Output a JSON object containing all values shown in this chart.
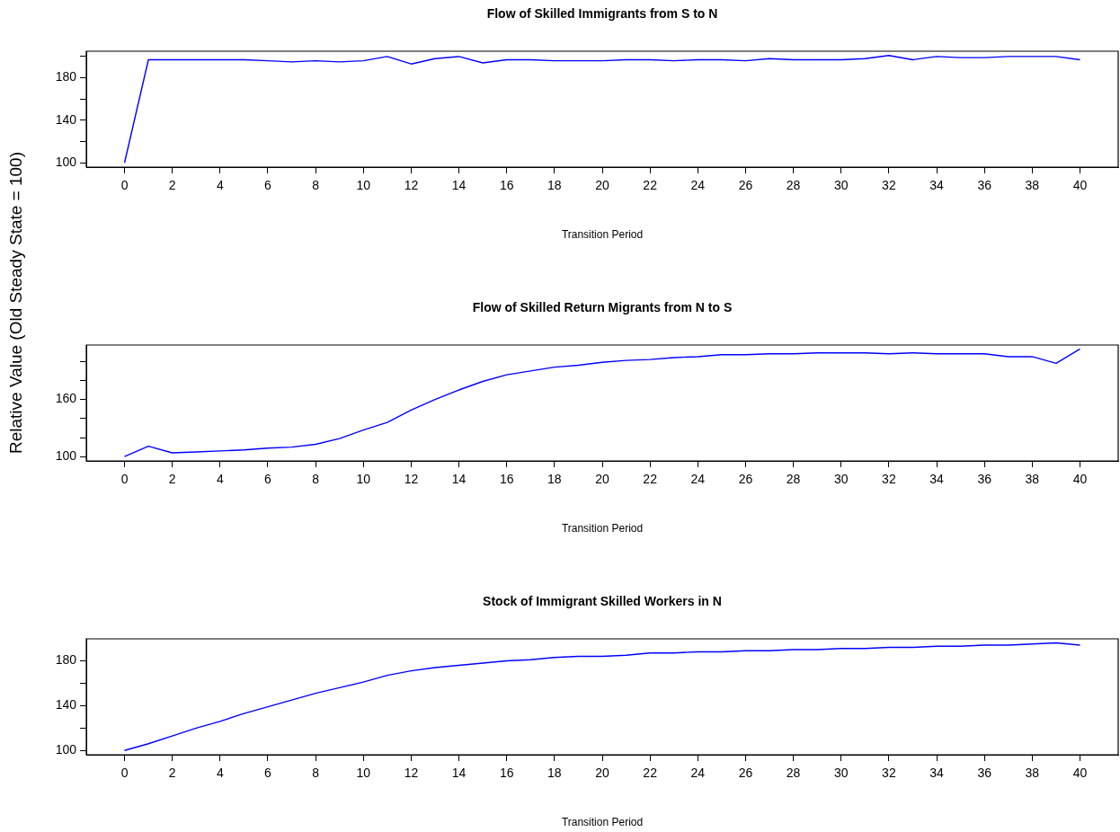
{
  "chart_data": [
    {
      "type": "line",
      "title": "Flow of Skilled Immigrants from S to N",
      "xlabel": "Transition Period",
      "x": [
        0,
        1,
        2,
        3,
        4,
        5,
        6,
        7,
        8,
        9,
        10,
        11,
        12,
        13,
        14,
        15,
        16,
        17,
        18,
        19,
        20,
        21,
        22,
        23,
        24,
        25,
        26,
        27,
        28,
        29,
        30,
        31,
        32,
        33,
        34,
        35,
        36,
        37,
        38,
        39,
        40
      ],
      "series": [
        {
          "color": "#0000ff",
          "values": [
            100,
            197,
            197,
            197,
            197,
            197,
            196,
            195,
            196,
            195,
            196,
            200,
            193,
            198,
            200,
            194,
            197,
            197,
            196,
            196,
            196,
            197,
            197,
            196,
            197,
            197,
            196,
            198,
            197,
            197,
            197,
            198,
            201,
            197,
            200,
            199,
            199,
            200,
            200,
            200,
            197
          ]
        }
      ],
      "xlim": [
        -1.6,
        41.6
      ],
      "xticks": [
        0,
        2,
        4,
        6,
        8,
        10,
        12,
        14,
        16,
        18,
        20,
        22,
        24,
        26,
        28,
        30,
        32,
        34,
        36,
        38,
        40
      ],
      "ylim": [
        96,
        205
      ],
      "yticks": [
        100,
        {
          "value": 120,
          "label": null
        },
        140,
        {
          "value": 160,
          "label": null
        },
        180,
        {
          "value": 200,
          "label": null
        }
      ]
    },
    {
      "type": "line",
      "title": "Flow of Skilled Return Migrants from N to S",
      "xlabel": "Transition Period",
      "ylabel": "Relative Value (Old Steady State = 100)",
      "x": [
        0,
        1,
        2,
        3,
        4,
        5,
        6,
        7,
        8,
        9,
        10,
        11,
        12,
        13,
        14,
        15,
        16,
        17,
        18,
        19,
        20,
        21,
        22,
        23,
        24,
        25,
        26,
        27,
        28,
        29,
        30,
        31,
        32,
        33,
        34,
        35,
        36,
        37,
        38,
        39,
        40
      ],
      "series": [
        {
          "color": "#0000ff",
          "values": [
            100,
            111,
            104,
            105,
            106,
            107,
            109,
            110,
            113,
            119,
            128,
            136,
            149,
            160,
            170,
            179,
            186,
            190,
            194,
            196,
            199,
            201,
            202,
            204,
            205,
            207,
            207,
            208,
            208,
            209,
            209,
            209,
            208,
            209,
            208,
            208,
            208,
            205,
            205,
            198,
            213
          ]
        }
      ],
      "xlim": [
        -1.6,
        41.6
      ],
      "xticks": [
        0,
        2,
        4,
        6,
        8,
        10,
        12,
        14,
        16,
        18,
        20,
        22,
        24,
        26,
        28,
        30,
        32,
        34,
        36,
        38,
        40
      ],
      "ylim": [
        95.5,
        217.2
      ],
      "yticks": [
        100,
        {
          "value": 120,
          "label": null
        },
        {
          "value": 140,
          "label": null
        },
        160,
        {
          "value": 180,
          "label": null
        },
        {
          "value": 200,
          "label": null
        }
      ]
    },
    {
      "type": "line",
      "title": "Stock of Immigrant Skilled Workers in N",
      "xlabel": "Transition Period",
      "x": [
        0,
        1,
        2,
        3,
        4,
        5,
        6,
        7,
        8,
        9,
        10,
        11,
        12,
        13,
        14,
        15,
        16,
        17,
        18,
        19,
        20,
        21,
        22,
        23,
        24,
        25,
        26,
        27,
        28,
        29,
        30,
        31,
        32,
        33,
        34,
        35,
        36,
        37,
        38,
        39,
        40
      ],
      "series": [
        {
          "color": "#0000ff",
          "values": [
            100,
            106,
            113,
            120,
            126,
            133,
            139,
            145,
            151,
            156,
            161,
            167,
            171,
            174,
            176,
            178,
            180,
            181,
            183,
            184,
            184,
            185,
            187,
            187,
            188,
            188,
            189,
            189,
            190,
            190,
            191,
            191,
            192,
            192,
            193,
            193,
            194,
            194,
            195,
            196,
            194
          ]
        }
      ],
      "xlim": [
        -1.6,
        41.6
      ],
      "xticks": [
        0,
        2,
        4,
        6,
        8,
        10,
        12,
        14,
        16,
        18,
        20,
        22,
        24,
        26,
        28,
        30,
        32,
        34,
        36,
        38,
        40
      ],
      "ylim": [
        96.2,
        199.6
      ],
      "yticks": [
        100,
        {
          "value": 120,
          "label": null
        },
        140,
        {
          "value": 160,
          "label": null
        },
        180
      ]
    }
  ]
}
